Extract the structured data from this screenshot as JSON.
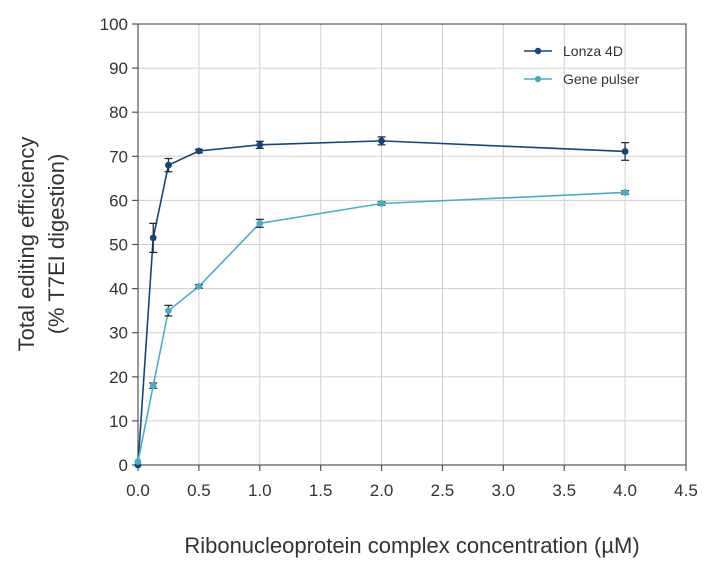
{
  "chart_data": {
    "type": "line",
    "title": "",
    "xlabel": "Ribonucleoprotein complex concentration (µM)",
    "ylabel_lines": [
      "Total editing efficiency",
      "(% T7EI digestion)"
    ],
    "xlim": [
      0,
      4.5
    ],
    "ylim": [
      0,
      100
    ],
    "xticks": [
      "0.0",
      "0.5",
      "1.0",
      "1.5",
      "2.0",
      "2.5",
      "3.0",
      "3.5",
      "4.0",
      "4.5"
    ],
    "yticks": [
      "0",
      "10",
      "20",
      "30",
      "40",
      "50",
      "60",
      "70",
      "80",
      "90",
      "100"
    ],
    "grid": true,
    "legend_position": "top-right",
    "series": [
      {
        "name": "Lonza 4D",
        "color": "#12467a",
        "points": [
          {
            "x": 0,
            "y": 0,
            "err": 0
          },
          {
            "x": 0.125,
            "y": 51.5,
            "err": 3.3
          },
          {
            "x": 0.25,
            "y": 68,
            "err": 1.5
          },
          {
            "x": 0.5,
            "y": 71.2,
            "err": 0.4
          },
          {
            "x": 1,
            "y": 72.6,
            "err": 0.8
          },
          {
            "x": 2,
            "y": 73.5,
            "err": 0.9
          },
          {
            "x": 4,
            "y": 71.1,
            "err": 2.0
          }
        ]
      },
      {
        "name": "Gene pulser",
        "color": "#49aec4",
        "points": [
          {
            "x": 0,
            "y": 0.8,
            "err": 0
          },
          {
            "x": 0.125,
            "y": 18,
            "err": 0.6
          },
          {
            "x": 0.25,
            "y": 35,
            "err": 1.2
          },
          {
            "x": 0.5,
            "y": 40.5,
            "err": 0.4
          },
          {
            "x": 1,
            "y": 54.8,
            "err": 0.9
          },
          {
            "x": 2,
            "y": 59.3,
            "err": 0.4
          },
          {
            "x": 4,
            "y": 61.8,
            "err": 0.4
          }
        ]
      }
    ]
  }
}
